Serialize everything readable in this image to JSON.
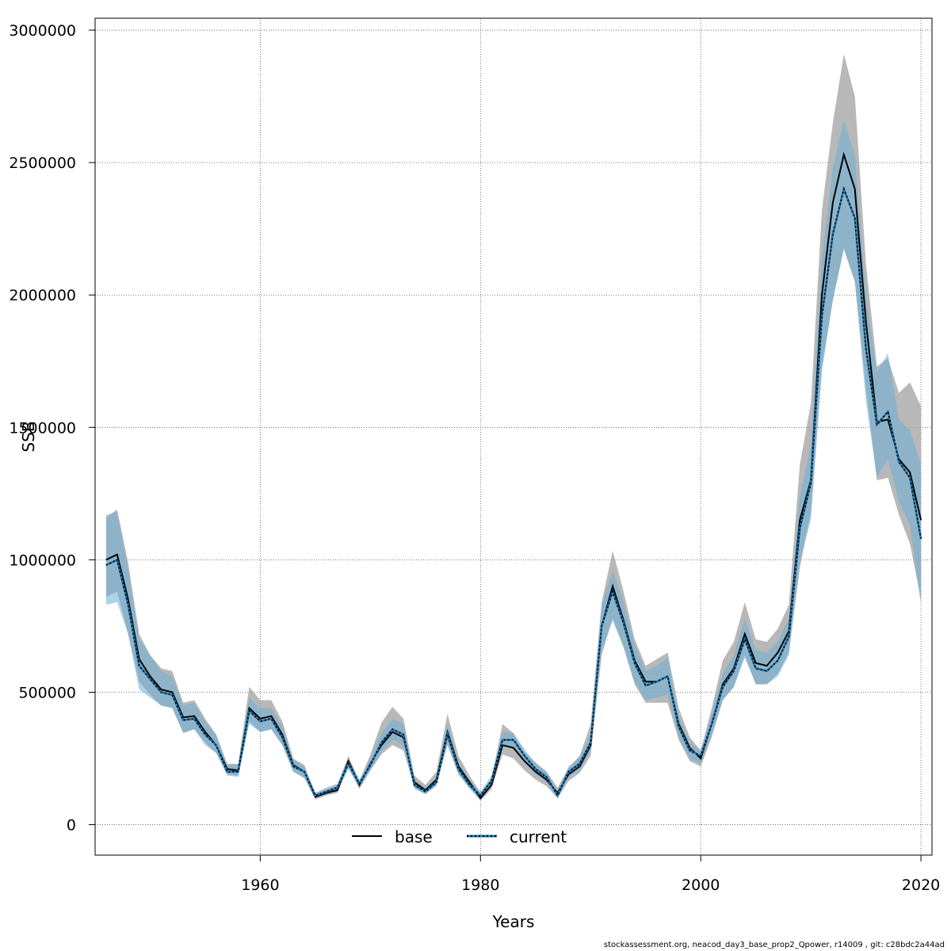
{
  "chart_data": {
    "type": "line",
    "title": "",
    "xlabel": "Years",
    "ylabel": "SSB",
    "xlim": [
      1945,
      2021
    ],
    "ylim": [
      -115000,
      3045000
    ],
    "x_ticks": [
      1960,
      1980,
      2000,
      2020
    ],
    "y_ticks": [
      0,
      500000,
      1000000,
      1500000,
      2000000,
      2500000,
      3000000
    ],
    "x_tick_labels": [
      "1960",
      "1980",
      "2000",
      "2020"
    ],
    "y_tick_labels": [
      "0",
      "500000",
      "1000000",
      "1500000",
      "2000000",
      "2500000",
      "3000000"
    ],
    "grid": true,
    "legend_position": "bottom-center",
    "x": [
      1946,
      1947,
      1948,
      1949,
      1950,
      1951,
      1952,
      1953,
      1954,
      1955,
      1956,
      1957,
      1958,
      1959,
      1960,
      1961,
      1962,
      1963,
      1964,
      1965,
      1966,
      1967,
      1968,
      1969,
      1970,
      1971,
      1972,
      1973,
      1974,
      1975,
      1976,
      1977,
      1978,
      1979,
      1980,
      1981,
      1982,
      1983,
      1984,
      1985,
      1986,
      1987,
      1988,
      1989,
      1990,
      1991,
      1992,
      1993,
      1994,
      1995,
      1996,
      1997,
      1998,
      1999,
      2000,
      2001,
      2002,
      2003,
      2004,
      2005,
      2006,
      2007,
      2008,
      2009,
      2010,
      2011,
      2012,
      2013,
      2014,
      2015,
      2016,
      2017,
      2018,
      2019,
      2020
    ],
    "series": [
      {
        "name": "base",
        "color": "#000000",
        "band_color": "#a0a0a0",
        "values": [
          1000000,
          1020000,
          850000,
          625000,
          560000,
          510000,
          500000,
          405000,
          410000,
          350000,
          300000,
          210000,
          205000,
          440000,
          400000,
          410000,
          340000,
          225000,
          200000,
          105000,
          120000,
          130000,
          240000,
          150000,
          230000,
          300000,
          350000,
          330000,
          160000,
          130000,
          170000,
          350000,
          220000,
          160000,
          100000,
          150000,
          300000,
          290000,
          240000,
          200000,
          170000,
          120000,
          190000,
          220000,
          300000,
          750000,
          900000,
          770000,
          620000,
          540000,
          540000,
          560000,
          380000,
          290000,
          250000,
          380000,
          530000,
          590000,
          720000,
          610000,
          600000,
          650000,
          730000,
          1150000,
          1300000,
          2000000,
          2350000,
          2530000,
          2400000,
          1900000,
          1520000,
          1530000,
          1380000,
          1330000,
          1150000
        ],
        "lower": [
          860000,
          880000,
          720000,
          540000,
          490000,
          450000,
          440000,
          345000,
          360000,
          310000,
          270000,
          190000,
          185000,
          390000,
          350000,
          360000,
          300000,
          200000,
          175000,
          95000,
          110000,
          120000,
          215000,
          135000,
          205000,
          265000,
          300000,
          280000,
          140000,
          115000,
          150000,
          300000,
          190000,
          140000,
          90000,
          135000,
          265000,
          250000,
          205000,
          170000,
          145000,
          100000,
          165000,
          195000,
          260000,
          640000,
          780000,
          670000,
          530000,
          460000,
          460000,
          460000,
          320000,
          240000,
          220000,
          330000,
          470000,
          520000,
          640000,
          530000,
          530000,
          570000,
          650000,
          970000,
          1180000,
          1730000,
          1980000,
          2180000,
          2050000,
          1650000,
          1300000,
          1310000,
          1170000,
          1060000,
          850000
        ],
        "upper": [
          1160000,
          1190000,
          990000,
          720000,
          640000,
          590000,
          580000,
          460000,
          470000,
          400000,
          340000,
          230000,
          230000,
          520000,
          470000,
          470000,
          390000,
          250000,
          225000,
          120000,
          135000,
          150000,
          260000,
          165000,
          265000,
          385000,
          445000,
          400000,
          185000,
          150000,
          200000,
          420000,
          260000,
          185000,
          120000,
          175000,
          380000,
          345000,
          275000,
          235000,
          200000,
          140000,
          215000,
          260000,
          380000,
          840000,
          1035000,
          880000,
          700000,
          600000,
          625000,
          650000,
          440000,
          330000,
          280000,
          440000,
          620000,
          690000,
          840000,
          700000,
          690000,
          740000,
          830000,
          1360000,
          1590000,
          2320000,
          2650000,
          2910000,
          2750000,
          2120000,
          1730000,
          1760000,
          1630000,
          1670000,
          1580000
        ]
      },
      {
        "name": "current",
        "color": "#1f78b4",
        "band_color": "#6baed6",
        "values": [
          980000,
          1000000,
          830000,
          600000,
          550000,
          500000,
          490000,
          395000,
          400000,
          340000,
          300000,
          200000,
          200000,
          430000,
          390000,
          400000,
          330000,
          220000,
          200000,
          110000,
          125000,
          140000,
          230000,
          155000,
          225000,
          310000,
          360000,
          340000,
          150000,
          125000,
          160000,
          340000,
          210000,
          150000,
          110000,
          165000,
          320000,
          320000,
          260000,
          210000,
          180000,
          110000,
          200000,
          230000,
          310000,
          750000,
          880000,
          760000,
          610000,
          525000,
          540000,
          560000,
          370000,
          280000,
          260000,
          380000,
          520000,
          580000,
          700000,
          590000,
          580000,
          620000,
          710000,
          1120000,
          1290000,
          1920000,
          2230000,
          2400000,
          2290000,
          1800000,
          1510000,
          1560000,
          1370000,
          1310000,
          1080000
        ],
        "lower": [
          830000,
          840000,
          720000,
          510000,
          480000,
          450000,
          440000,
          350000,
          360000,
          300000,
          270000,
          185000,
          180000,
          380000,
          350000,
          360000,
          300000,
          200000,
          180000,
          100000,
          115000,
          125000,
          210000,
          140000,
          205000,
          275000,
          320000,
          300000,
          135000,
          115000,
          145000,
          305000,
          190000,
          135000,
          95000,
          150000,
          295000,
          295000,
          235000,
          190000,
          160000,
          100000,
          180000,
          205000,
          280000,
          660000,
          770000,
          670000,
          540000,
          470000,
          480000,
          490000,
          330000,
          250000,
          230000,
          340000,
          470000,
          520000,
          630000,
          530000,
          530000,
          560000,
          640000,
          1000000,
          1150000,
          1710000,
          1980000,
          2170000,
          2050000,
          1600000,
          1310000,
          1380000,
          1220000,
          1130000,
          830000
        ],
        "upper": [
          1170000,
          1180000,
          960000,
          700000,
          640000,
          580000,
          560000,
          450000,
          460000,
          390000,
          340000,
          225000,
          225000,
          480000,
          440000,
          440000,
          370000,
          245000,
          220000,
          120000,
          140000,
          155000,
          250000,
          170000,
          250000,
          345000,
          400000,
          380000,
          170000,
          140000,
          180000,
          380000,
          235000,
          170000,
          125000,
          185000,
          350000,
          345000,
          285000,
          230000,
          200000,
          125000,
          220000,
          255000,
          340000,
          830000,
          960000,
          840000,
          680000,
          580000,
          600000,
          630000,
          410000,
          310000,
          280000,
          420000,
          570000,
          640000,
          780000,
          660000,
          650000,
          690000,
          780000,
          1240000,
          1430000,
          2140000,
          2480000,
          2660000,
          2530000,
          2000000,
          1710000,
          1780000,
          1530000,
          1490000,
          1360000
        ]
      }
    ]
  },
  "footer": {
    "text": "stockassessment.org, neacod_day3_base_prop2_Qpower, r14009 , git: c28bdc2a44ad"
  }
}
